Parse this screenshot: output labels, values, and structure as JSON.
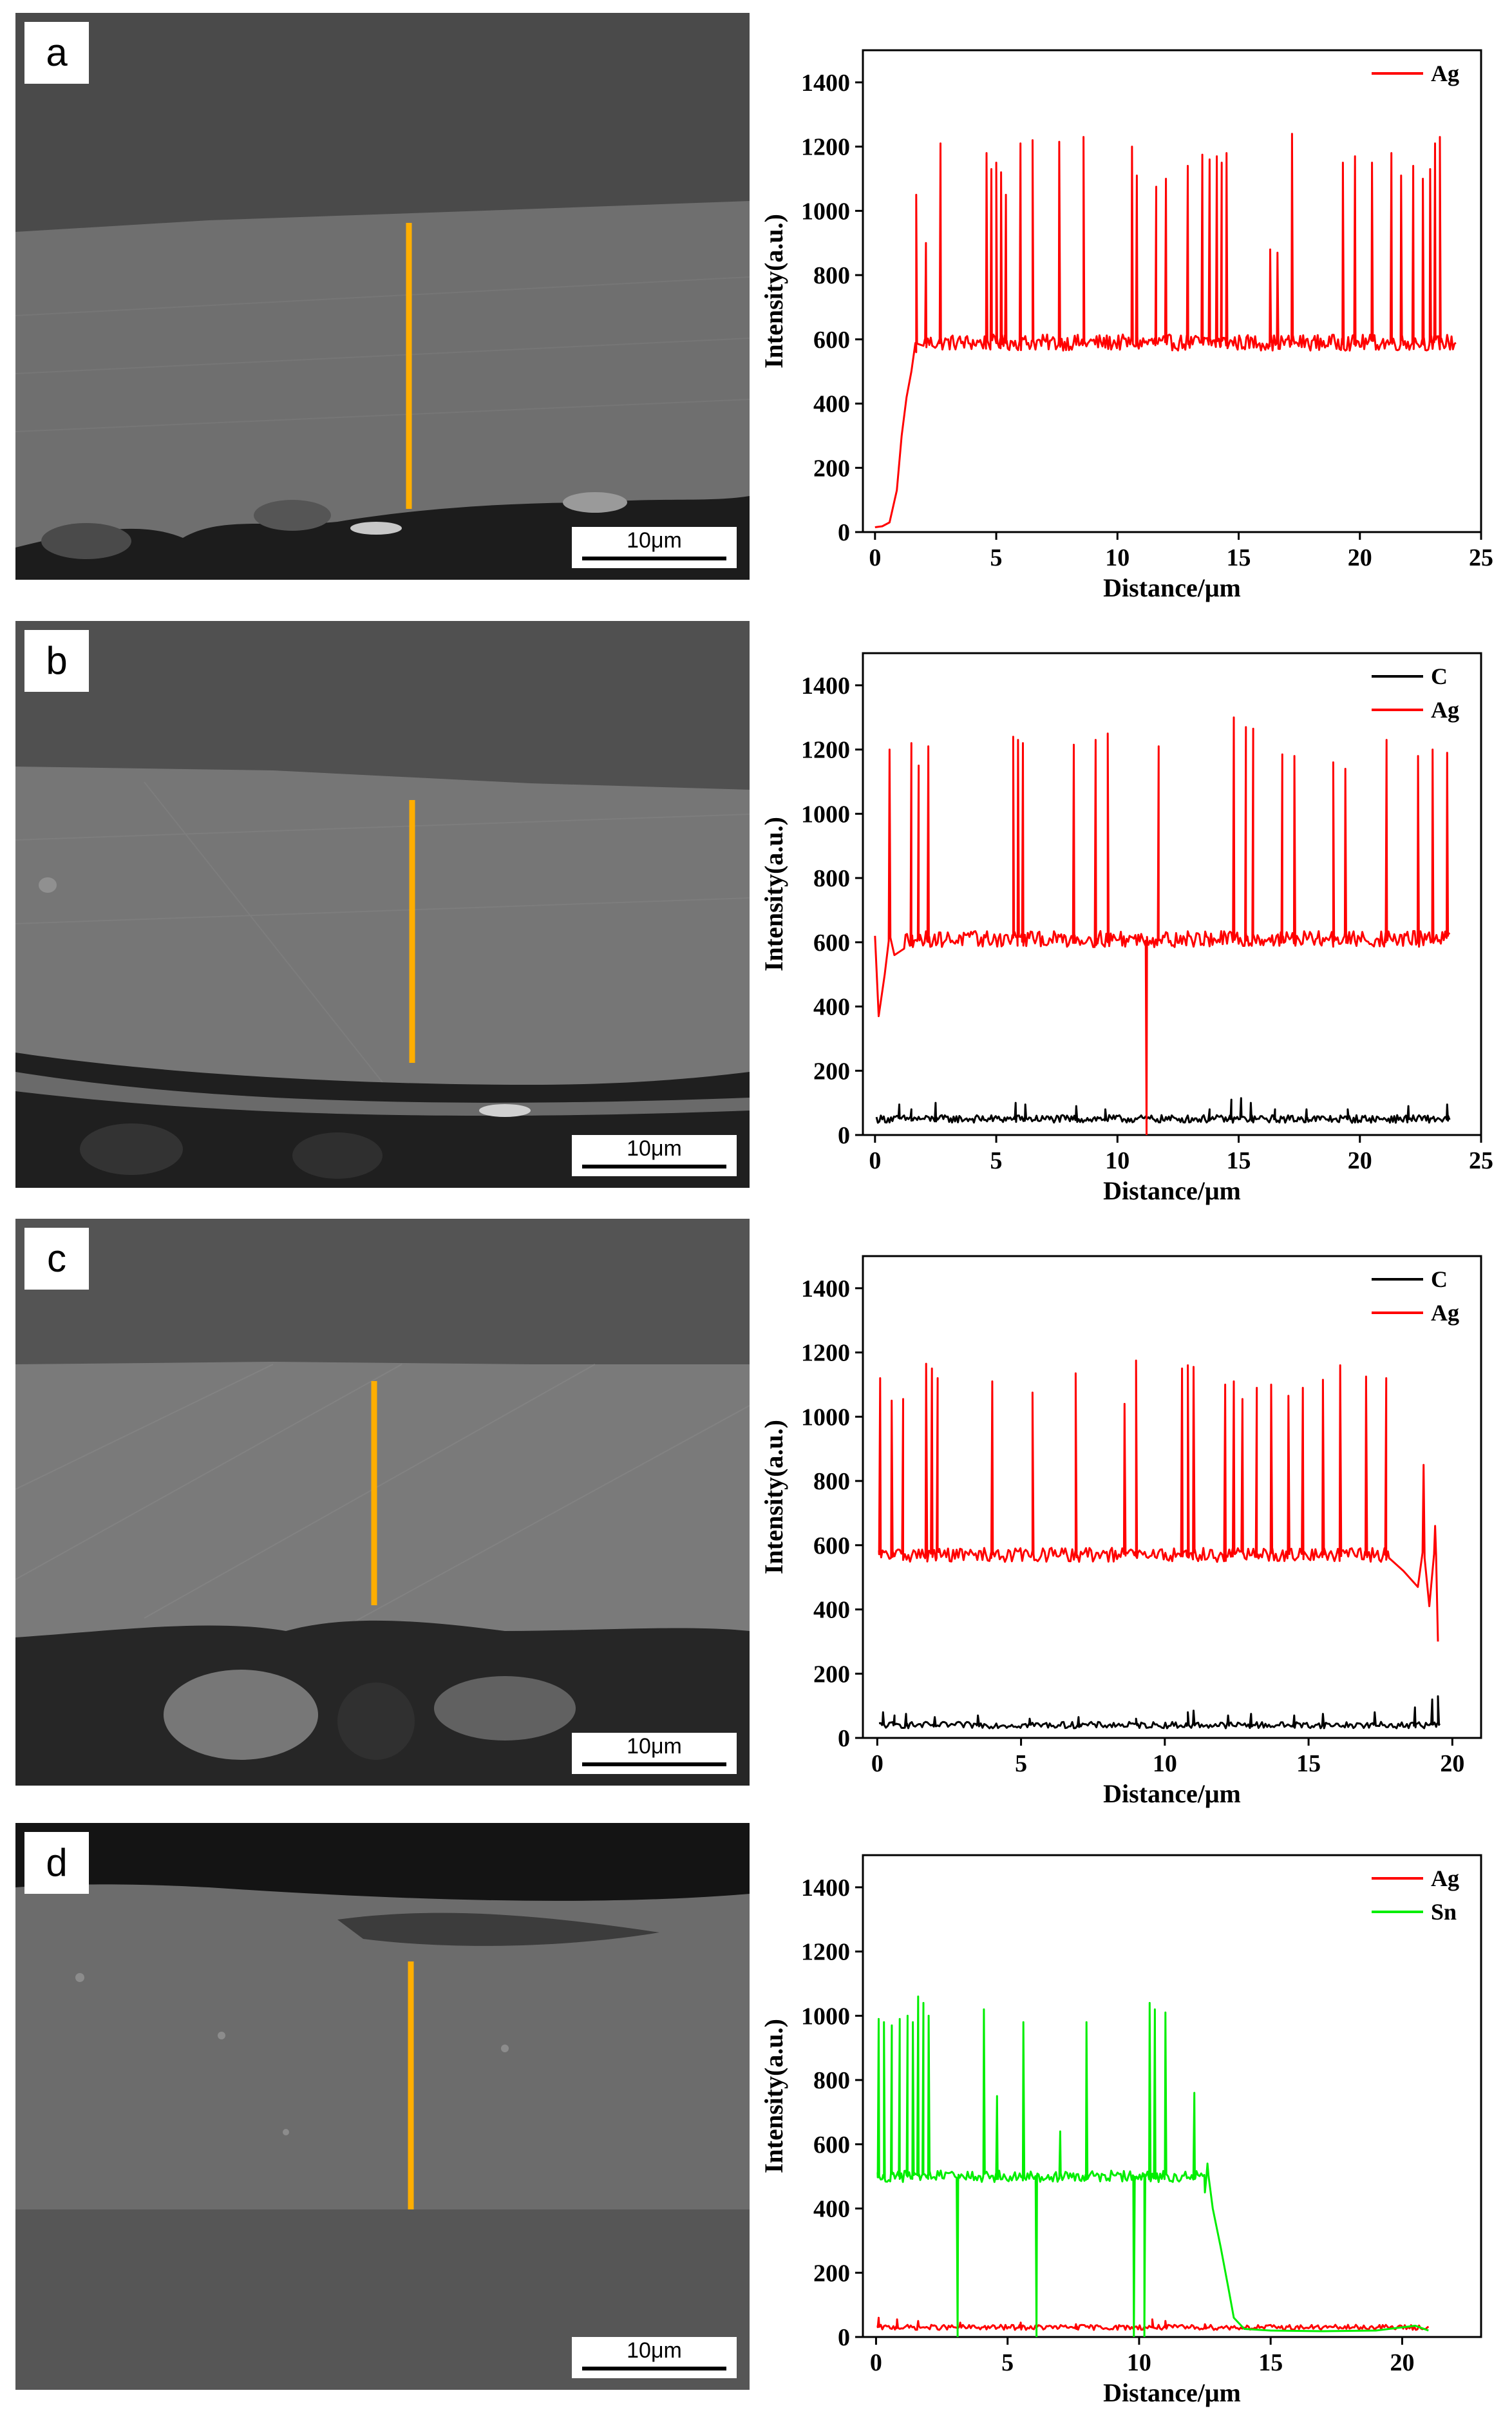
{
  "panels": [
    {
      "label": "a",
      "scale_bar": "10μm",
      "chart_data": {
        "type": "line",
        "xlabel": "Distance/μm",
        "ylabel": "Intensity(a.u.)",
        "xlim": [
          -0.5,
          25
        ],
        "ylim": [
          0,
          1500
        ],
        "xticks": [
          0,
          5,
          10,
          15,
          20,
          25
        ],
        "yticks": [
          0,
          200,
          400,
          600,
          800,
          1000,
          1200,
          1400
        ],
        "legend": "top-right",
        "series": [
          {
            "name": "Ag",
            "color": "#ff0000",
            "x_end": 24,
            "rise": [
              [
                0,
                15
              ],
              [
                0.3,
                18
              ],
              [
                0.6,
                30
              ],
              [
                0.9,
                130
              ],
              [
                1.1,
                300
              ],
              [
                1.3,
                420
              ],
              [
                1.5,
                500
              ],
              [
                1.7,
                560
              ],
              [
                2.0,
                580
              ]
            ],
            "baseline": 590,
            "noise": 25,
            "spikes": [
              [
                1.7,
                1050
              ],
              [
                2.1,
                900
              ],
              [
                2.7,
                1210
              ],
              [
                4.6,
                1180
              ],
              [
                4.8,
                1130
              ],
              [
                5.0,
                1150
              ],
              [
                5.2,
                1120
              ],
              [
                5.4,
                1050
              ],
              [
                6.0,
                1210
              ],
              [
                6.5,
                1220
              ],
              [
                7.6,
                1215
              ],
              [
                8.6,
                1230
              ],
              [
                10.6,
                1200
              ],
              [
                10.8,
                1110
              ],
              [
                11.6,
                1075
              ],
              [
                12.0,
                1100
              ],
              [
                12.9,
                1140
              ],
              [
                13.5,
                1175
              ],
              [
                13.8,
                1160
              ],
              [
                14.1,
                1170
              ],
              [
                14.3,
                1150
              ],
              [
                14.5,
                1180
              ],
              [
                16.3,
                880
              ],
              [
                16.6,
                870
              ],
              [
                17.2,
                1240
              ],
              [
                19.3,
                1150
              ],
              [
                19.8,
                1170
              ],
              [
                20.5,
                1150
              ],
              [
                21.3,
                1180
              ],
              [
                21.7,
                1110
              ],
              [
                22.2,
                1140
              ],
              [
                22.6,
                1100
              ],
              [
                22.9,
                1130
              ],
              [
                23.1,
                1210
              ],
              [
                23.3,
                1230
              ]
            ]
          }
        ]
      }
    },
    {
      "label": "b",
      "scale_bar": "10μm",
      "chart_data": {
        "type": "line",
        "xlabel": "Distance/μm",
        "ylabel": "Intensity(a.u.)",
        "xlim": [
          -0.5,
          25
        ],
        "ylim": [
          0,
          1500
        ],
        "xticks": [
          0,
          5,
          10,
          15,
          20,
          25
        ],
        "yticks": [
          0,
          200,
          400,
          600,
          800,
          1000,
          1200,
          1400
        ],
        "legend": "top-right",
        "series": [
          {
            "name": "C",
            "color": "#000000",
            "x_end": 23.7,
            "baseline": 50,
            "noise": 12,
            "spikes": [
              [
                1.0,
                95
              ],
              [
                1.5,
                80
              ],
              [
                2.5,
                100
              ],
              [
                5.8,
                100
              ],
              [
                6.2,
                95
              ],
              [
                8.3,
                90
              ],
              [
                9.5,
                80
              ],
              [
                13.8,
                80
              ],
              [
                14.7,
                110
              ],
              [
                15.1,
                115
              ],
              [
                15.5,
                100
              ],
              [
                16.5,
                80
              ],
              [
                17.8,
                80
              ],
              [
                19.5,
                80
              ],
              [
                22.0,
                90
              ],
              [
                23.6,
                95
              ]
            ]
          },
          {
            "name": "Ag",
            "color": "#ff0000",
            "x_end": 23.7,
            "rise": [
              [
                0,
                620
              ],
              [
                0.15,
                370
              ],
              [
                0.4,
                500
              ],
              [
                0.8,
                560
              ],
              [
                1.2,
                580
              ]
            ],
            "baseline": 610,
            "noise": 25,
            "spikes": [
              [
                0.6,
                1200
              ],
              [
                1.5,
                1220
              ],
              [
                1.8,
                1150
              ],
              [
                2.2,
                1210
              ],
              [
                5.7,
                1240
              ],
              [
                5.9,
                1230
              ],
              [
                6.1,
                1220
              ],
              [
                8.2,
                1215
              ],
              [
                9.1,
                1230
              ],
              [
                9.6,
                1250
              ],
              [
                11.7,
                1210
              ],
              [
                14.8,
                1300
              ],
              [
                15.3,
                1270
              ],
              [
                15.6,
                1265
              ],
              [
                16.8,
                1185
              ],
              [
                17.3,
                1180
              ],
              [
                18.9,
                1160
              ],
              [
                19.4,
                1140
              ],
              [
                21.1,
                1230
              ],
              [
                22.4,
                1180
              ],
              [
                23.0,
                1200
              ],
              [
                23.6,
                1190
              ]
            ],
            "dips": [
              [
                11.2,
                0
              ]
            ]
          }
        ]
      }
    },
    {
      "label": "c",
      "scale_bar": "10μm",
      "chart_data": {
        "type": "line",
        "xlabel": "Distance/μm",
        "ylabel": "Intensity(a.u.)",
        "xlim": [
          -0.5,
          21
        ],
        "ylim": [
          0,
          1500
        ],
        "xticks": [
          0,
          5,
          10,
          15,
          20
        ],
        "yticks": [
          0,
          200,
          400,
          600,
          800,
          1000,
          1200,
          1400
        ],
        "legend": "top-right",
        "series": [
          {
            "name": "C",
            "color": "#000000",
            "x_end": 19.6,
            "baseline": 40,
            "noise": 10,
            "spikes": [
              [
                0.2,
                80
              ],
              [
                0.6,
                70
              ],
              [
                1.0,
                75
              ],
              [
                2.0,
                65
              ],
              [
                3.5,
                70
              ],
              [
                5.3,
                60
              ],
              [
                7.0,
                65
              ],
              [
                9.0,
                60
              ],
              [
                10.8,
                80
              ],
              [
                11.0,
                85
              ],
              [
                12.2,
                70
              ],
              [
                13.0,
                75
              ],
              [
                14.5,
                70
              ],
              [
                15.5,
                75
              ],
              [
                17.3,
                80
              ],
              [
                18.7,
                95
              ],
              [
                19.3,
                120
              ],
              [
                19.5,
                130
              ]
            ]
          },
          {
            "name": "Ag",
            "color": "#ff0000",
            "x_end": 19.6,
            "baseline": 570,
            "noise": 22,
            "tail": [
              [
                17.8,
                560
              ],
              [
                18.3,
                520
              ],
              [
                18.8,
                470
              ],
              [
                19.2,
                410
              ],
              [
                19.5,
                300
              ]
            ],
            "spikes": [
              [
                0.1,
                1120
              ],
              [
                0.5,
                1050
              ],
              [
                0.9,
                1055
              ],
              [
                1.7,
                1165
              ],
              [
                1.9,
                1150
              ],
              [
                2.1,
                1120
              ],
              [
                4.0,
                1110
              ],
              [
                5.4,
                1075
              ],
              [
                6.9,
                1135
              ],
              [
                8.6,
                1040
              ],
              [
                9.0,
                1175
              ],
              [
                10.6,
                1150
              ],
              [
                10.8,
                1160
              ],
              [
                11.0,
                1155
              ],
              [
                12.1,
                1100
              ],
              [
                12.4,
                1110
              ],
              [
                12.7,
                1055
              ],
              [
                13.2,
                1090
              ],
              [
                13.7,
                1100
              ],
              [
                14.3,
                1065
              ],
              [
                14.8,
                1090
              ],
              [
                15.5,
                1115
              ],
              [
                16.1,
                1160
              ],
              [
                17.0,
                1125
              ],
              [
                17.7,
                1120
              ],
              [
                19.0,
                850
              ],
              [
                19.4,
                660
              ]
            ]
          }
        ]
      }
    },
    {
      "label": "d",
      "scale_bar": "10μm",
      "chart_data": {
        "type": "line",
        "xlabel": "Distance/μm",
        "ylabel": "Intensity(a.u.)",
        "xlim": [
          -0.5,
          23
        ],
        "ylim": [
          0,
          1500
        ],
        "xticks": [
          0,
          5,
          10,
          15,
          20
        ],
        "yticks": [
          0,
          200,
          400,
          600,
          800,
          1000,
          1200,
          1400
        ],
        "legend": "top-right",
        "series": [
          {
            "name": "Ag",
            "color": "#ff0000",
            "x_end": 21,
            "baseline": 30,
            "noise": 8,
            "spikes": [
              [
                0.1,
                60
              ],
              [
                0.8,
                55
              ],
              [
                1.6,
                50
              ],
              [
                3.2,
                45
              ],
              [
                5.5,
                45
              ],
              [
                7.6,
                40
              ],
              [
                10.5,
                55
              ],
              [
                11.0,
                50
              ],
              [
                12.5,
                40
              ]
            ]
          },
          {
            "name": "Sn",
            "color": "#00ee00",
            "x_end": 21,
            "baseline": 500,
            "noise": 18,
            "tail": [
              [
                12.5,
                450
              ],
              [
                12.8,
                400
              ],
              [
                13.1,
                280
              ],
              [
                13.4,
                150
              ],
              [
                13.6,
                60
              ],
              [
                14.0,
                25
              ],
              [
                15.0,
                20
              ],
              [
                17.0,
                18
              ],
              [
                19.0,
                20
              ],
              [
                20.5,
                35
              ],
              [
                21.0,
                20
              ]
            ],
            "spikes": [
              [
                0.1,
                990
              ],
              [
                0.3,
                980
              ],
              [
                0.6,
                970
              ],
              [
                0.9,
                990
              ],
              [
                1.2,
                1000
              ],
              [
                1.4,
                980
              ],
              [
                1.6,
                1060
              ],
              [
                1.8,
                1040
              ],
              [
                2.0,
                1000
              ],
              [
                4.1,
                1020
              ],
              [
                4.6,
                750
              ],
              [
                5.6,
                980
              ],
              [
                7.0,
                640
              ],
              [
                8.0,
                980
              ],
              [
                10.4,
                1040
              ],
              [
                10.6,
                1020
              ],
              [
                11.0,
                1010
              ],
              [
                12.1,
                760
              ],
              [
                12.6,
                540
              ]
            ],
            "dips": [
              [
                3.1,
                0
              ],
              [
                6.1,
                0
              ],
              [
                9.8,
                0
              ],
              [
                10.2,
                0
              ]
            ]
          }
        ]
      }
    }
  ]
}
